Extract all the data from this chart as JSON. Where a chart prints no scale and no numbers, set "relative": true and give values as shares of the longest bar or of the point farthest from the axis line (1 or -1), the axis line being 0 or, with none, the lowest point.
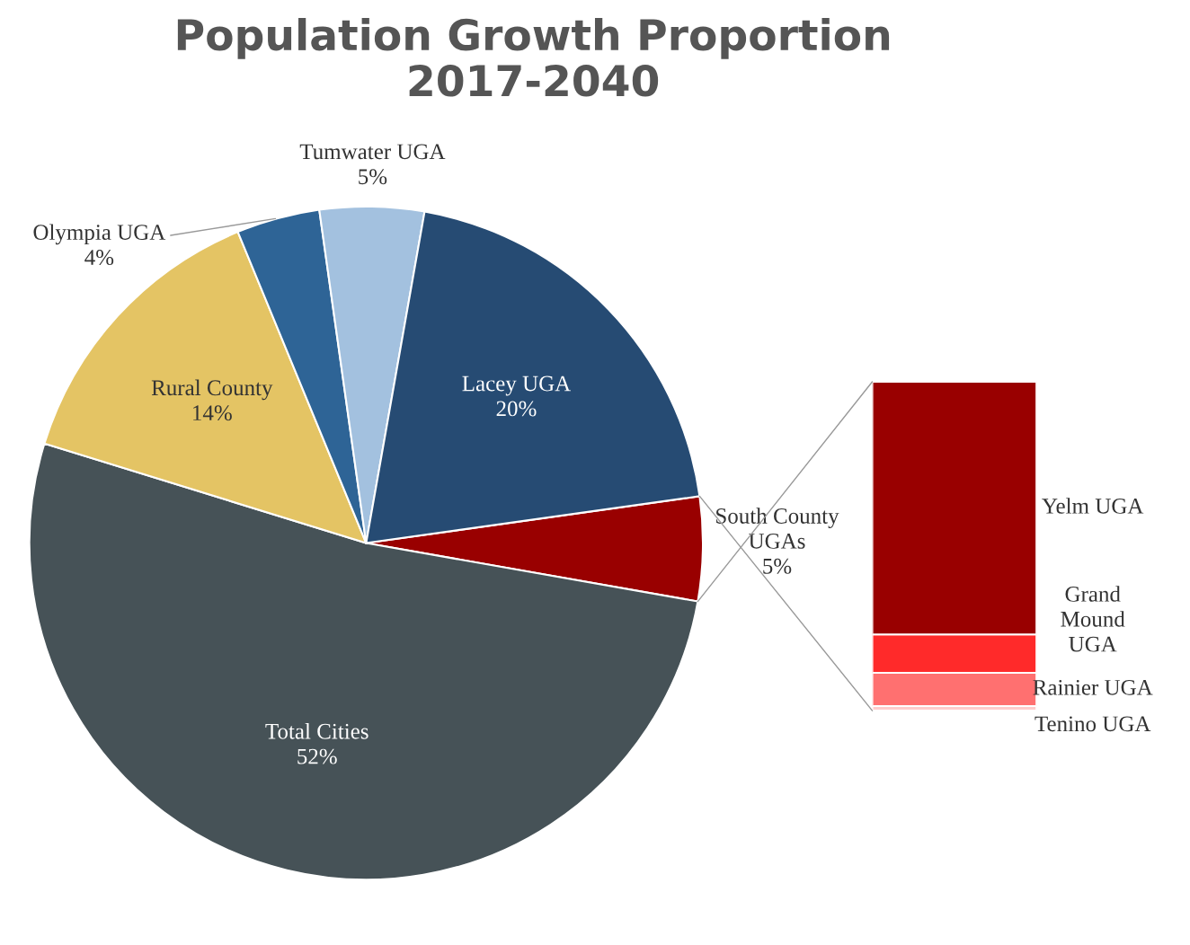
{
  "chart_data": [
    {
      "type": "pie",
      "title": "Population Growth Proportion\n2017-2040",
      "categories": [
        "South County\nUGAs",
        "Total Cities",
        "Rural County",
        "Olympia UGA",
        "Tumwater UGA",
        "Lacey UGA"
      ],
      "values": [
        5,
        52,
        14,
        4,
        5,
        20
      ],
      "colors": [
        "#990000",
        "#465257",
        "#e4c464",
        "#2e6496",
        "#a3c1df",
        "#264b73"
      ],
      "value_labels": [
        "5%",
        "52%",
        "14%",
        "4%",
        "5%",
        "20%"
      ]
    },
    {
      "type": "bar",
      "stacked": true,
      "relative": true,
      "categories": [
        null
      ],
      "series": [
        {
          "name": "Tenino UGA",
          "color": "#ffcccc",
          "values": [
            0.014
          ]
        },
        {
          "name": "Rainier UGA",
          "color": "#ff7070",
          "values": [
            0.101
          ]
        },
        {
          "name": "Grand\nMound\nUGA",
          "color": "#ff2a2a",
          "values": [
            0.117
          ]
        },
        {
          "name": "Yelm UGA",
          "color": "#990000",
          "values": [
            0.768
          ]
        }
      ]
    }
  ]
}
